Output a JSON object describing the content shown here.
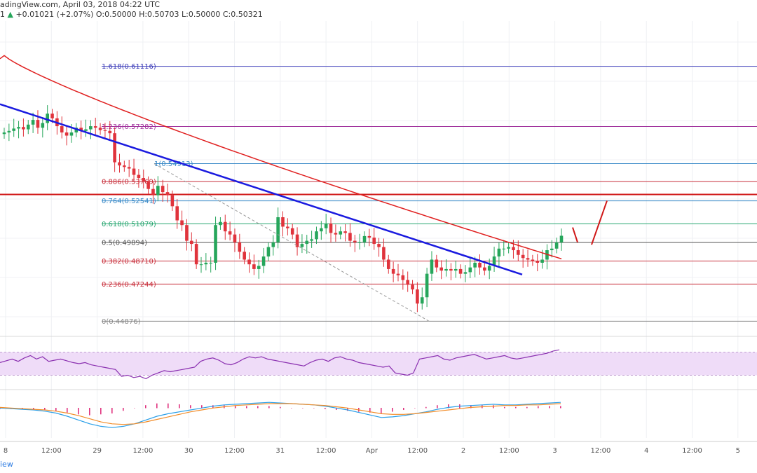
{
  "header": {
    "source": "adingView.com, April 03, 2018 04:22 UTC",
    "prefix": "1",
    "change": "+0.01021 (+2.07%)",
    "ohlc": "O:0.50000  H:0.50703  L:0.50000  C:0.50321"
  },
  "footer": {
    "label": "iew"
  },
  "colors": {
    "up": "#26a65b",
    "down": "#e0333c",
    "ma": "#e02020",
    "trend": "#1a1adf",
    "resistance": "#d01818",
    "rsi_bg": "#efdcf8",
    "rsi_line": "#8a2fb0",
    "macd": "#2a9fe8",
    "signal": "#f28c28",
    "hist": "#e0337e"
  },
  "chart_data": {
    "type": "candlestick",
    "x_ticks": [
      "8",
      "12:00",
      "29",
      "12:00",
      "30",
      "12:00",
      "31",
      "12:00",
      "Apr",
      "12:00",
      "2",
      "12:00",
      "3",
      "12:00",
      "4",
      "12:00",
      "5"
    ],
    "ylim": [
      0.44,
      0.64
    ],
    "resistance_level": 0.5295,
    "fibonacci": [
      {
        "ratio": "1.618",
        "value": "0.61116",
        "color": "#3a3ab8"
      },
      {
        "ratio": "1.236",
        "value": "0.57282",
        "color": "#a0309c"
      },
      {
        "ratio": "1",
        "value": "0.54913",
        "color": "#3a8ac8"
      },
      {
        "ratio": "0.886",
        "value": "0.53769",
        "color": "#c8303c"
      },
      {
        "ratio": "0.764",
        "value": "0.52541",
        "color": "#3a8ac8"
      },
      {
        "ratio": "0.618",
        "value": "0.51079",
        "color": "#27a670"
      },
      {
        "ratio": "0.5",
        "value": "0.49894",
        "color": "#555555"
      },
      {
        "ratio": "0.382",
        "value": "0.48710",
        "color": "#c8303c"
      },
      {
        "ratio": "0.236",
        "value": "0.47244",
        "color": "#c8303c"
      },
      {
        "ratio": "0",
        "value": "0.44876",
        "color": "#888888"
      }
    ],
    "close": [
      0.569,
      0.57,
      0.5715,
      0.5725,
      0.571,
      0.574,
      0.577,
      0.572,
      0.575,
      0.581,
      0.578,
      0.573,
      0.569,
      0.567,
      0.569,
      0.572,
      0.57,
      0.571,
      0.573,
      0.572,
      0.5705,
      0.57,
      0.5685,
      0.55,
      0.548,
      0.547,
      0.546,
      0.542,
      0.54,
      0.538,
      0.533,
      0.529,
      0.535,
      0.531,
      0.529,
      0.522,
      0.513,
      0.51,
      0.5,
      0.498,
      0.485,
      0.485,
      0.486,
      0.486,
      0.51,
      0.512,
      0.506,
      0.504,
      0.499,
      0.493,
      0.488,
      0.485,
      0.482,
      0.484,
      0.49,
      0.496,
      0.499,
      0.515,
      0.509,
      0.508,
      0.504,
      0.496,
      0.498,
      0.5,
      0.501,
      0.506,
      0.508,
      0.511,
      0.505,
      0.504,
      0.506,
      0.505,
      0.5,
      0.499,
      0.499,
      0.503,
      0.502,
      0.498,
      0.496,
      0.488,
      0.482,
      0.479,
      0.478,
      0.475,
      0.472,
      0.469,
      0.46,
      0.464,
      0.479,
      0.488,
      0.483,
      0.481,
      0.482,
      0.481,
      0.482,
      0.479,
      0.48,
      0.483,
      0.486,
      0.483,
      0.481,
      0.484,
      0.49,
      0.495,
      0.495,
      0.496,
      0.494,
      0.491,
      0.489,
      0.488,
      0.487,
      0.486,
      0.488,
      0.494,
      0.495,
      0.499,
      0.5032
    ],
    "rsi": {
      "upper": 70,
      "lower": 30,
      "values": [
        52,
        55,
        58,
        54,
        60,
        64,
        58,
        62,
        54,
        56,
        58,
        55,
        52,
        50,
        52,
        48,
        46,
        44,
        42,
        40,
        28,
        30,
        26,
        28,
        24,
        30,
        34,
        38,
        36,
        38,
        40,
        42,
        44,
        54,
        58,
        60,
        56,
        50,
        48,
        52,
        58,
        62,
        60,
        62,
        58,
        56,
        54,
        52,
        50,
        48,
        46,
        52,
        56,
        58,
        54,
        60,
        62,
        58,
        56,
        52,
        50,
        48,
        46,
        44,
        46,
        34,
        32,
        30,
        34,
        58,
        60,
        62,
        64,
        58,
        56,
        60,
        62,
        64,
        66,
        62,
        58,
        60,
        62,
        64,
        60,
        58,
        60,
        62,
        64,
        66,
        68,
        72,
        74
      ]
    },
    "macd": {
      "macd": [
        0.3,
        0.2,
        0.1,
        0.0,
        -0.2,
        -0.5,
        -1.0,
        -1.6,
        -2.2,
        -2.6,
        -2.8,
        -2.6,
        -2.2,
        -1.6,
        -1.0,
        -0.6,
        -0.3,
        0.0,
        0.3,
        0.6,
        0.8,
        0.9,
        1.0,
        1.1,
        1.2,
        1.1,
        1.0,
        0.9,
        0.8,
        0.6,
        0.3,
        0.0,
        -0.4,
        -0.8,
        -1.2,
        -1.1,
        -0.9,
        -0.6,
        -0.3,
        0.1,
        0.4,
        0.6,
        0.7,
        0.8,
        0.9,
        0.8,
        0.8,
        0.9,
        1.0,
        1.1,
        1.2
      ],
      "signal": [
        0.4,
        0.3,
        0.2,
        0.1,
        0.0,
        -0.2,
        -0.5,
        -0.9,
        -1.4,
        -1.9,
        -2.2,
        -2.3,
        -2.2,
        -1.9,
        -1.5,
        -1.1,
        -0.7,
        -0.3,
        0.0,
        0.3,
        0.5,
        0.7,
        0.8,
        0.9,
        1.0,
        1.0,
        1.0,
        0.9,
        0.8,
        0.7,
        0.5,
        0.3,
        0.0,
        -0.3,
        -0.6,
        -0.7,
        -0.7,
        -0.6,
        -0.4,
        -0.2,
        0.0,
        0.2,
        0.4,
        0.5,
        0.6,
        0.7,
        0.7,
        0.8,
        0.8,
        0.9,
        1.0
      ]
    }
  }
}
